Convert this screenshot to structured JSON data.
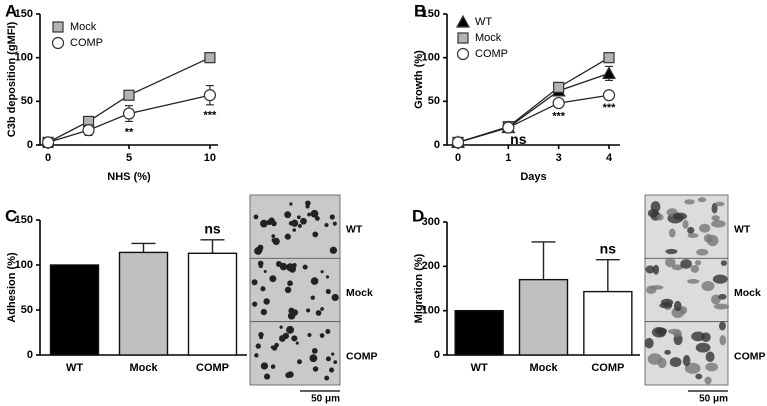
{
  "chart_data": [
    {
      "type": "line",
      "label": "A",
      "ylabel": "C3b deposition (gMFI)",
      "xlabel": "NHS (%)",
      "x": [
        0,
        2.5,
        5,
        10
      ],
      "xlim": [
        -0.5,
        10.5
      ],
      "xticks": [
        0,
        5,
        10
      ],
      "ylim": [
        0,
        150
      ],
      "yticks": [
        0,
        50,
        100,
        150
      ],
      "legend": "upper left",
      "series": [
        {
          "name": "Mock",
          "color": "#b3b3b3",
          "marker": "square",
          "values": [
            3,
            27,
            57,
            100
          ],
          "errors": [
            1,
            3,
            4,
            2
          ]
        },
        {
          "name": "COMP",
          "color": "#ffffff",
          "marker": "circle",
          "values": [
            3,
            17,
            36,
            57
          ],
          "errors": [
            2,
            6,
            9,
            11
          ]
        }
      ],
      "annotations": [
        {
          "text": "**",
          "x": 5
        },
        {
          "text": "***",
          "x": 10
        }
      ]
    },
    {
      "type": "line",
      "label": "B",
      "ylabel": "Growth (%)",
      "xlabel": "Days",
      "categories": [
        "0",
        "1",
        "3",
        "4"
      ],
      "ylim": [
        0,
        150
      ],
      "yticks": [
        0,
        50,
        100,
        150
      ],
      "legend": "upper left",
      "series": [
        {
          "name": "WT",
          "color": "#000000",
          "marker": "triangle",
          "values": [
            3,
            20,
            62,
            82
          ],
          "errors": [
            1,
            2,
            3,
            8
          ]
        },
        {
          "name": "Mock",
          "color": "#b3b3b3",
          "marker": "square",
          "values": [
            3,
            21,
            66,
            100
          ],
          "errors": [
            1,
            2,
            3,
            3
          ]
        },
        {
          "name": "COMP",
          "color": "#ffffff",
          "marker": "circle",
          "values": [
            3,
            20,
            48,
            57
          ],
          "errors": [
            1,
            2,
            3,
            2
          ]
        }
      ],
      "annotations": [
        {
          "text": "ns",
          "x": "1"
        },
        {
          "text": "***",
          "x": "3"
        },
        {
          "text": "***",
          "x": "4"
        }
      ]
    },
    {
      "type": "bar",
      "label": "C",
      "ylabel": "Adhesion (%)",
      "categories": [
        "WT",
        "Mock",
        "COMP"
      ],
      "values": [
        100,
        114,
        113
      ],
      "errors": [
        null,
        10,
        15
      ],
      "colors": [
        "#000000",
        "#c0c0c0",
        "#ffffff"
      ],
      "ylim": [
        0,
        150
      ],
      "yticks": [
        0,
        50,
        100,
        150
      ],
      "annotations": [
        {
          "text": "ns",
          "x": "COMP"
        }
      ],
      "micrograph": {
        "labels": [
          "WT",
          "Mock",
          "COMP"
        ],
        "scale_bar": "50 μm"
      }
    },
    {
      "type": "bar",
      "label": "D",
      "ylabel": "Migration (%)",
      "categories": [
        "WT",
        "Mock",
        "COMP"
      ],
      "values": [
        100,
        170,
        143
      ],
      "errors": [
        null,
        85,
        72
      ],
      "colors": [
        "#000000",
        "#c0c0c0",
        "#ffffff"
      ],
      "ylim": [
        0,
        300
      ],
      "yticks": [
        0,
        100,
        200,
        300
      ],
      "annotations": [
        {
          "text": "ns",
          "x": "COMP"
        }
      ],
      "micrograph": {
        "labels": [
          "WT",
          "Mock",
          "COMP"
        ],
        "scale_bar": "50 μm"
      }
    }
  ]
}
